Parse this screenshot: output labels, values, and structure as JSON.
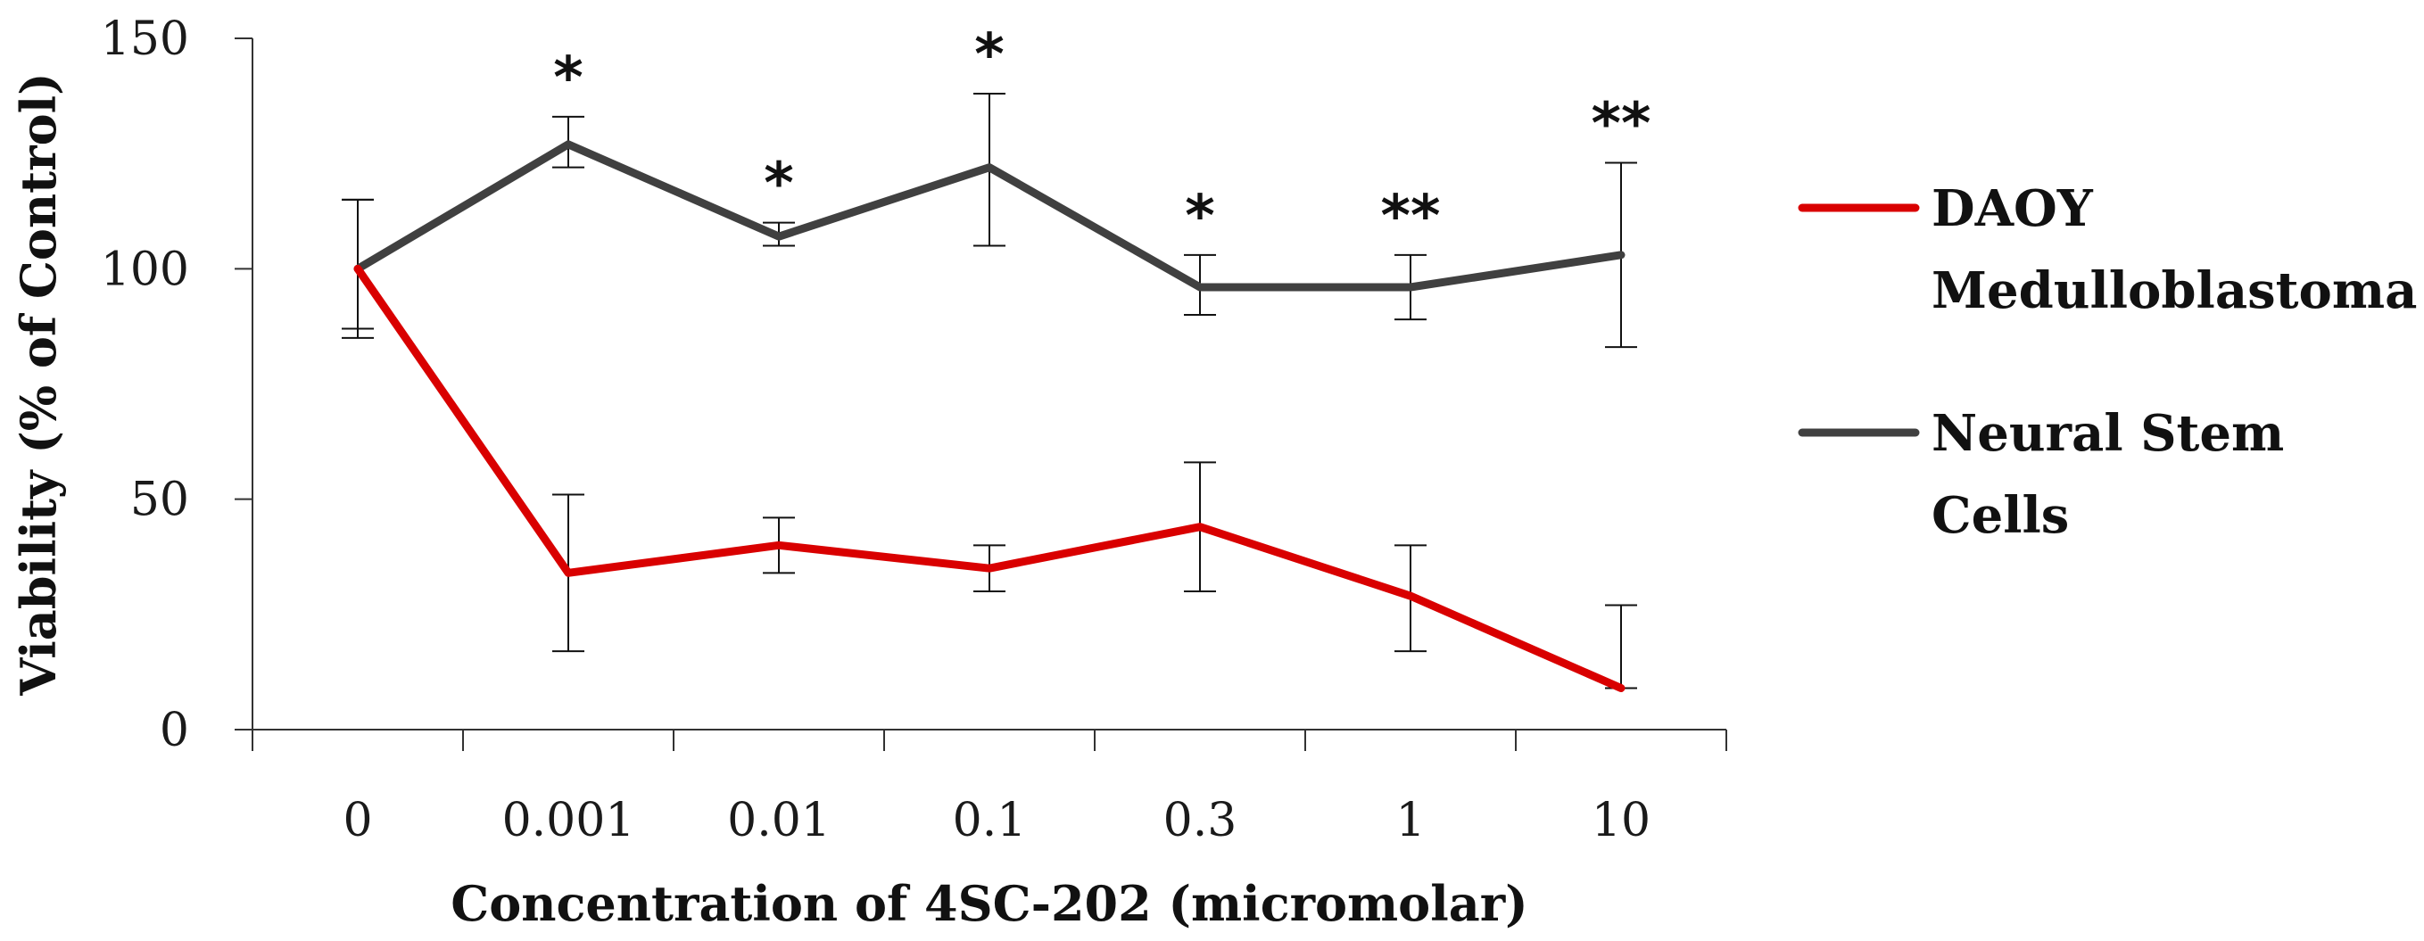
{
  "chart_data": {
    "type": "line",
    "title": "",
    "xlabel": "Concentration of 4SC-202 (micromolar)",
    "ylabel": "Viability (% of Control)",
    "categories": [
      "0",
      "0.001",
      "0.01",
      "0.1",
      "0.3",
      "1",
      "10"
    ],
    "ylim": [
      0,
      150
    ],
    "yticks": [
      "0",
      "50",
      "100",
      "150"
    ],
    "grid": false,
    "legend_position": "right",
    "series": [
      {
        "name": "DAOY Medulloblastoma",
        "legend_lines": [
          "DAOY",
          "Medulloblastoma"
        ],
        "color": "#d90000",
        "values": [
          100,
          34,
          40,
          35,
          44,
          29,
          9
        ],
        "error_high": [
          115,
          51,
          46,
          40,
          58,
          40,
          27
        ],
        "error_low": [
          85,
          17,
          34,
          30,
          30,
          17,
          9
        ]
      },
      {
        "name": "Neural Stem Cells",
        "legend_lines": [
          "Neural Stem",
          "Cells"
        ],
        "color": "#404040",
        "values": [
          100,
          127,
          107,
          122,
          96,
          96,
          103
        ],
        "error_high": [
          115,
          133,
          110,
          138,
          103,
          103,
          123
        ],
        "error_low": [
          87,
          122,
          105,
          105,
          90,
          89,
          83
        ]
      }
    ],
    "annotations": [
      "",
      "*",
      "*",
      "*",
      "*",
      "**",
      "**"
    ]
  }
}
